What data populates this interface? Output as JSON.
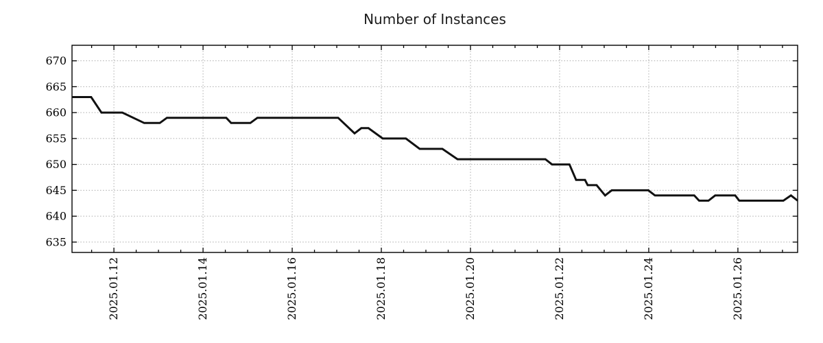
{
  "chart_data": {
    "type": "line",
    "title": "Number of Instances",
    "grid": {
      "show": true,
      "style": "dotted",
      "color": "#aaaaaa"
    },
    "axis_color": "#000000",
    "x_axis": {
      "unit": "days",
      "range": [
        0.06,
        16.34
      ],
      "major_ticks": [
        {
          "pos": 1,
          "label": "2025.01.12"
        },
        {
          "pos": 3,
          "label": "2025.01.14"
        },
        {
          "pos": 5,
          "label": "2025.01.16"
        },
        {
          "pos": 7,
          "label": "2025.01.18"
        },
        {
          "pos": 9,
          "label": "2025.01.20"
        },
        {
          "pos": 11,
          "label": "2025.01.22"
        },
        {
          "pos": 13,
          "label": "2025.01.24"
        },
        {
          "pos": 15,
          "label": "2025.01.26"
        }
      ],
      "minor_tick_interval": 0.5,
      "label_rotation": -90
    },
    "y_axis": {
      "range": [
        633,
        673
      ],
      "ticks": [
        635,
        640,
        645,
        650,
        655,
        660,
        665,
        670
      ]
    },
    "series": [
      {
        "name": "instances",
        "color": "#111111",
        "width": 3,
        "points": [
          [
            0.06,
            663
          ],
          [
            0.49,
            663
          ],
          [
            0.72,
            660
          ],
          [
            1.19,
            660
          ],
          [
            1.68,
            658
          ],
          [
            2.03,
            658
          ],
          [
            2.19,
            659
          ],
          [
            3.52,
            659
          ],
          [
            3.63,
            658
          ],
          [
            4.06,
            658
          ],
          [
            4.22,
            659
          ],
          [
            6.03,
            659
          ],
          [
            6.4,
            656
          ],
          [
            6.55,
            657
          ],
          [
            6.71,
            657
          ],
          [
            7.03,
            655
          ],
          [
            7.55,
            655
          ],
          [
            7.86,
            653
          ],
          [
            8.37,
            653
          ],
          [
            8.71,
            651
          ],
          [
            10.68,
            651
          ],
          [
            10.83,
            650
          ],
          [
            11.22,
            650
          ],
          [
            11.37,
            647
          ],
          [
            11.57,
            647
          ],
          [
            11.63,
            646
          ],
          [
            11.83,
            646
          ],
          [
            12.02,
            644
          ],
          [
            12.17,
            645
          ],
          [
            12.99,
            645
          ],
          [
            13.14,
            644
          ],
          [
            14.02,
            644
          ],
          [
            14.13,
            643
          ],
          [
            14.34,
            643
          ],
          [
            14.49,
            644
          ],
          [
            14.94,
            644
          ],
          [
            15.03,
            643
          ],
          [
            16.02,
            643
          ],
          [
            16.19,
            644
          ],
          [
            16.34,
            643
          ]
        ]
      }
    ]
  }
}
